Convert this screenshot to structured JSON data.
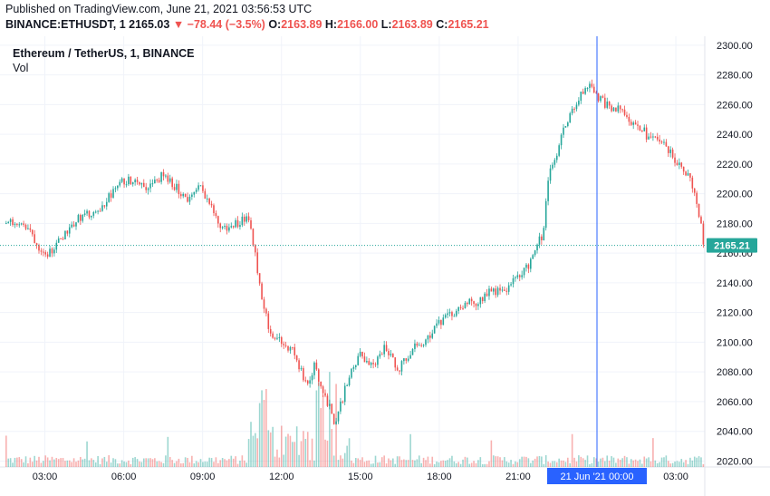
{
  "header": {
    "published": "Published on TradingView.com, June 21, 2021 03:56:53 UTC",
    "symbol": "BINANCE:ETHUSDT, 1",
    "last": "2165.03",
    "change": "−78.44 (−3.5%)",
    "open_label": "O:",
    "open": "2163.89",
    "high_label": "H:",
    "high": "2166.00",
    "low_label": "L:",
    "low": "2163.89",
    "close_label": "C:",
    "close": "2165.21"
  },
  "legend": {
    "title": "Ethereum / TetherUS, 1, BINANCE",
    "volume": "Vol"
  },
  "colors": {
    "up": "#26a69a",
    "down": "#ef5350",
    "crosshair": "#2962ff",
    "price_line": "#26a69a"
  },
  "chart_data": {
    "type": "candlestick",
    "y_ticks": [
      2020,
      2040,
      2060,
      2080,
      2100,
      2120,
      2140,
      2160,
      2180,
      2200,
      2220,
      2240,
      2260,
      2280,
      2300
    ],
    "ylim": [
      2016,
      2306
    ],
    "x_tick_labels": [
      "03:00",
      "06:00",
      "09:00",
      "12:00",
      "15:00",
      "18:00",
      "21:00",
      "03:00"
    ],
    "x_ticks_hours": [
      3,
      6,
      9,
      12,
      15,
      18,
      21,
      27
    ],
    "xlim_hours": [
      1.5,
      28.1
    ],
    "crosshair_label": "21 Jun '21   00:00",
    "crosshair_hour": 24,
    "last_price": 2165.21,
    "last_price_label": "2165.21",
    "grid": true,
    "price_path": [
      [
        1.5,
        2180
      ],
      [
        2.0,
        2182
      ],
      [
        2.5,
        2175
      ],
      [
        2.8,
        2165
      ],
      [
        3.2,
        2160
      ],
      [
        3.6,
        2168
      ],
      [
        4.0,
        2178
      ],
      [
        4.5,
        2186
      ],
      [
        5.0,
        2185
      ],
      [
        5.5,
        2198
      ],
      [
        6.0,
        2208
      ],
      [
        6.5,
        2210
      ],
      [
        7.0,
        2204
      ],
      [
        7.5,
        2212
      ],
      [
        8.0,
        2205
      ],
      [
        8.5,
        2196
      ],
      [
        9.0,
        2205
      ],
      [
        9.4,
        2190
      ],
      [
        9.7,
        2178
      ],
      [
        10.0,
        2176
      ],
      [
        10.5,
        2182
      ],
      [
        10.8,
        2185
      ],
      [
        11.0,
        2165
      ],
      [
        11.3,
        2132
      ],
      [
        11.6,
        2108
      ],
      [
        12.0,
        2100
      ],
      [
        12.5,
        2094
      ],
      [
        12.8,
        2080
      ],
      [
        13.0,
        2070
      ],
      [
        13.3,
        2084
      ],
      [
        13.8,
        2060
      ],
      [
        14.1,
        2045
      ],
      [
        14.5,
        2070
      ],
      [
        15.0,
        2092
      ],
      [
        15.5,
        2083
      ],
      [
        16.0,
        2097
      ],
      [
        16.5,
        2082
      ],
      [
        17.0,
        2095
      ],
      [
        17.5,
        2101
      ],
      [
        18.0,
        2112
      ],
      [
        18.5,
        2118
      ],
      [
        19.0,
        2126
      ],
      [
        19.5,
        2127
      ],
      [
        20.0,
        2135
      ],
      [
        20.5,
        2134
      ],
      [
        21.0,
        2143
      ],
      [
        21.5,
        2153
      ],
      [
        21.8,
        2168
      ],
      [
        22.0,
        2172
      ],
      [
        22.2,
        2210
      ],
      [
        22.5,
        2225
      ],
      [
        22.8,
        2244
      ],
      [
        23.0,
        2252
      ],
      [
        23.3,
        2262
      ],
      [
        23.6,
        2270
      ],
      [
        23.8,
        2276
      ],
      [
        24.0,
        2266
      ],
      [
        24.3,
        2262
      ],
      [
        24.6,
        2256
      ],
      [
        25.0,
        2258
      ],
      [
        25.4,
        2248
      ],
      [
        25.8,
        2244
      ],
      [
        26.0,
        2236
      ],
      [
        26.4,
        2238
      ],
      [
        26.8,
        2228
      ],
      [
        27.2,
        2220
      ],
      [
        27.6,
        2210
      ],
      [
        27.9,
        2190
      ],
      [
        28.1,
        2168
      ]
    ]
  }
}
